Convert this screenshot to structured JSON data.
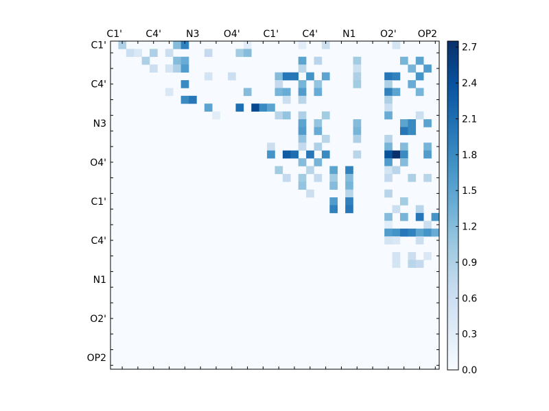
{
  "chart_data": {
    "type": "heatmap",
    "title": "",
    "xlabel": "",
    "ylabel": "",
    "x_tick_labels": [
      "C1'",
      "C4'",
      "N3",
      "O4'",
      "C1'",
      "C4'",
      "N1",
      "O2'",
      "OP2"
    ],
    "y_tick_labels": [
      "C1'",
      "C4'",
      "N3",
      "O4'",
      "C1'",
      "C4'",
      "N1",
      "O2'",
      "OP2"
    ],
    "grid_size": 42,
    "colormap": "Blues",
    "vmin": 0.0,
    "vmax": 2.75,
    "colorbar_ticks": [
      "0.0",
      "0.3",
      "0.6",
      "0.9",
      "1.2",
      "1.5",
      "1.8",
      "2.1",
      "2.4",
      "2.7"
    ],
    "colorbar_tick_values": [
      0.0,
      0.3,
      0.6,
      0.9,
      1.2,
      1.5,
      1.8,
      2.1,
      2.4,
      2.7
    ],
    "approx_cells": [
      [
        0,
        1,
        0.9
      ],
      [
        0,
        8,
        1.2
      ],
      [
        0,
        9,
        1.9
      ],
      [
        0,
        17,
        0.3
      ],
      [
        0,
        24,
        0.3
      ],
      [
        0,
        27,
        0.6
      ],
      [
        0,
        36,
        0.5
      ],
      [
        1,
        2,
        0.6
      ],
      [
        1,
        3,
        0.4
      ],
      [
        1,
        5,
        0.9
      ],
      [
        1,
        7,
        0.6
      ],
      [
        1,
        12,
        0.7
      ],
      [
        1,
        16,
        1.0
      ],
      [
        1,
        17,
        1.2
      ],
      [
        2,
        4,
        0.9
      ],
      [
        2,
        8,
        1.2
      ],
      [
        2,
        9,
        1.4
      ],
      [
        2,
        24,
        1.5
      ],
      [
        2,
        26,
        0.8
      ],
      [
        2,
        31,
        1.0
      ],
      [
        2,
        37,
        1.3
      ],
      [
        2,
        39,
        1.5
      ],
      [
        3,
        5,
        0.6
      ],
      [
        3,
        7,
        0.5
      ],
      [
        3,
        8,
        0.9
      ],
      [
        3,
        9,
        1.6
      ],
      [
        3,
        24,
        0.8
      ],
      [
        3,
        31,
        0.6
      ],
      [
        3,
        38,
        1.3
      ],
      [
        3,
        40,
        1.6
      ],
      [
        4,
        12,
        0.5
      ],
      [
        4,
        15,
        0.6
      ],
      [
        4,
        21,
        1.2
      ],
      [
        4,
        22,
        2.0
      ],
      [
        4,
        23,
        2.0
      ],
      [
        4,
        25,
        1.7
      ],
      [
        4,
        27,
        1.5
      ],
      [
        4,
        31,
        0.9
      ],
      [
        4,
        35,
        2.0
      ],
      [
        4,
        36,
        1.9
      ],
      [
        4,
        39,
        1.7
      ],
      [
        5,
        9,
        1.8
      ],
      [
        5,
        21,
        0.7
      ],
      [
        5,
        24,
        1.3
      ],
      [
        5,
        26,
        1.1
      ],
      [
        5,
        31,
        1.0
      ],
      [
        5,
        35,
        0.9
      ],
      [
        5,
        38,
        1.4
      ],
      [
        6,
        7,
        0.4
      ],
      [
        6,
        17,
        1.2
      ],
      [
        6,
        21,
        1.3
      ],
      [
        6,
        22,
        1.4
      ],
      [
        6,
        24,
        1.6
      ],
      [
        6,
        26,
        1.4
      ],
      [
        6,
        35,
        1.9
      ],
      [
        6,
        36,
        1.5
      ],
      [
        6,
        39,
        1.3
      ],
      [
        7,
        9,
        1.8
      ],
      [
        7,
        10,
        2.0
      ],
      [
        7,
        22,
        0.6
      ],
      [
        7,
        24,
        0.8
      ],
      [
        7,
        35,
        0.9
      ],
      [
        8,
        12,
        1.5
      ],
      [
        8,
        16,
        2.1
      ],
      [
        8,
        18,
        2.5
      ],
      [
        8,
        19,
        1.8
      ],
      [
        8,
        20,
        1.5
      ],
      [
        8,
        35,
        0.6
      ],
      [
        9,
        13,
        0.3
      ],
      [
        9,
        21,
        0.8
      ],
      [
        9,
        22,
        1.1
      ],
      [
        9,
        24,
        0.9
      ],
      [
        9,
        27,
        1.0
      ],
      [
        9,
        35,
        1.4
      ],
      [
        9,
        39,
        0.6
      ],
      [
        10,
        24,
        1.5
      ],
      [
        10,
        26,
        1.1
      ],
      [
        10,
        31,
        1.2
      ],
      [
        10,
        37,
        1.5
      ],
      [
        10,
        38,
        1.8
      ],
      [
        10,
        40,
        1.5
      ],
      [
        11,
        24,
        1.6
      ],
      [
        11,
        26,
        1.4
      ],
      [
        11,
        31,
        1.3
      ],
      [
        11,
        37,
        2.0
      ],
      [
        11,
        38,
        1.8
      ],
      [
        12,
        24,
        1.1
      ],
      [
        12,
        27,
        0.8
      ],
      [
        12,
        31,
        0.9
      ],
      [
        12,
        35,
        0.8
      ],
      [
        13,
        20,
        0.6
      ],
      [
        13,
        24,
        0.7
      ],
      [
        13,
        26,
        0.9
      ],
      [
        13,
        35,
        1.3
      ],
      [
        13,
        37,
        1.2
      ],
      [
        13,
        40,
        1.3
      ],
      [
        14,
        20,
        1.7
      ],
      [
        14,
        22,
        2.3
      ],
      [
        14,
        23,
        2.1
      ],
      [
        14,
        25,
        2.0
      ],
      [
        14,
        27,
        1.8
      ],
      [
        14,
        31,
        0.8
      ],
      [
        14,
        35,
        2.4
      ],
      [
        14,
        36,
        2.8
      ],
      [
        14,
        37,
        1.8
      ],
      [
        14,
        40,
        1.6
      ],
      [
        15,
        24,
        1.2
      ],
      [
        15,
        26,
        1.3
      ],
      [
        15,
        35,
        1.6
      ],
      [
        15,
        37,
        1.2
      ],
      [
        16,
        21,
        1.0
      ],
      [
        16,
        25,
        0.8
      ],
      [
        16,
        28,
        1.5
      ],
      [
        16,
        30,
        1.9
      ],
      [
        16,
        35,
        0.5
      ],
      [
        16,
        36,
        0.8
      ],
      [
        17,
        22,
        0.7
      ],
      [
        17,
        24,
        1.0
      ],
      [
        17,
        26,
        0.7
      ],
      [
        17,
        28,
        1.0
      ],
      [
        17,
        30,
        1.2
      ],
      [
        17,
        35,
        0.7
      ],
      [
        17,
        38,
        0.9
      ],
      [
        17,
        40,
        0.8
      ],
      [
        18,
        24,
        1.1
      ],
      [
        18,
        28,
        1.2
      ],
      [
        18,
        30,
        1.3
      ],
      [
        19,
        25,
        0.6
      ],
      [
        19,
        30,
        0.8
      ],
      [
        19,
        35,
        0.8
      ],
      [
        20,
        28,
        1.6
      ],
      [
        20,
        30,
        1.9
      ],
      [
        20,
        37,
        1.0
      ],
      [
        21,
        28,
        1.9
      ],
      [
        21,
        30,
        2.0
      ],
      [
        21,
        36,
        0.6
      ],
      [
        21,
        39,
        0.8
      ],
      [
        22,
        35,
        1.2
      ],
      [
        22,
        37,
        1.3
      ],
      [
        22,
        39,
        2.0
      ],
      [
        22,
        41,
        1.7
      ],
      [
        23,
        35,
        0.3
      ],
      [
        23,
        40,
        0.6
      ],
      [
        24,
        35,
        1.6
      ],
      [
        24,
        36,
        1.7
      ],
      [
        24,
        37,
        2.0
      ],
      [
        24,
        38,
        1.9
      ],
      [
        24,
        39,
        1.5
      ],
      [
        24,
        40,
        1.7
      ],
      [
        24,
        41,
        1.4
      ],
      [
        25,
        35,
        0.5
      ],
      [
        25,
        36,
        0.4
      ],
      [
        25,
        39,
        0.6
      ],
      [
        27,
        36,
        0.5
      ],
      [
        27,
        38,
        0.6
      ],
      [
        27,
        40,
        0.4
      ],
      [
        28,
        36,
        0.5
      ],
      [
        28,
        38,
        0.8
      ],
      [
        28,
        39,
        0.7
      ]
    ]
  }
}
